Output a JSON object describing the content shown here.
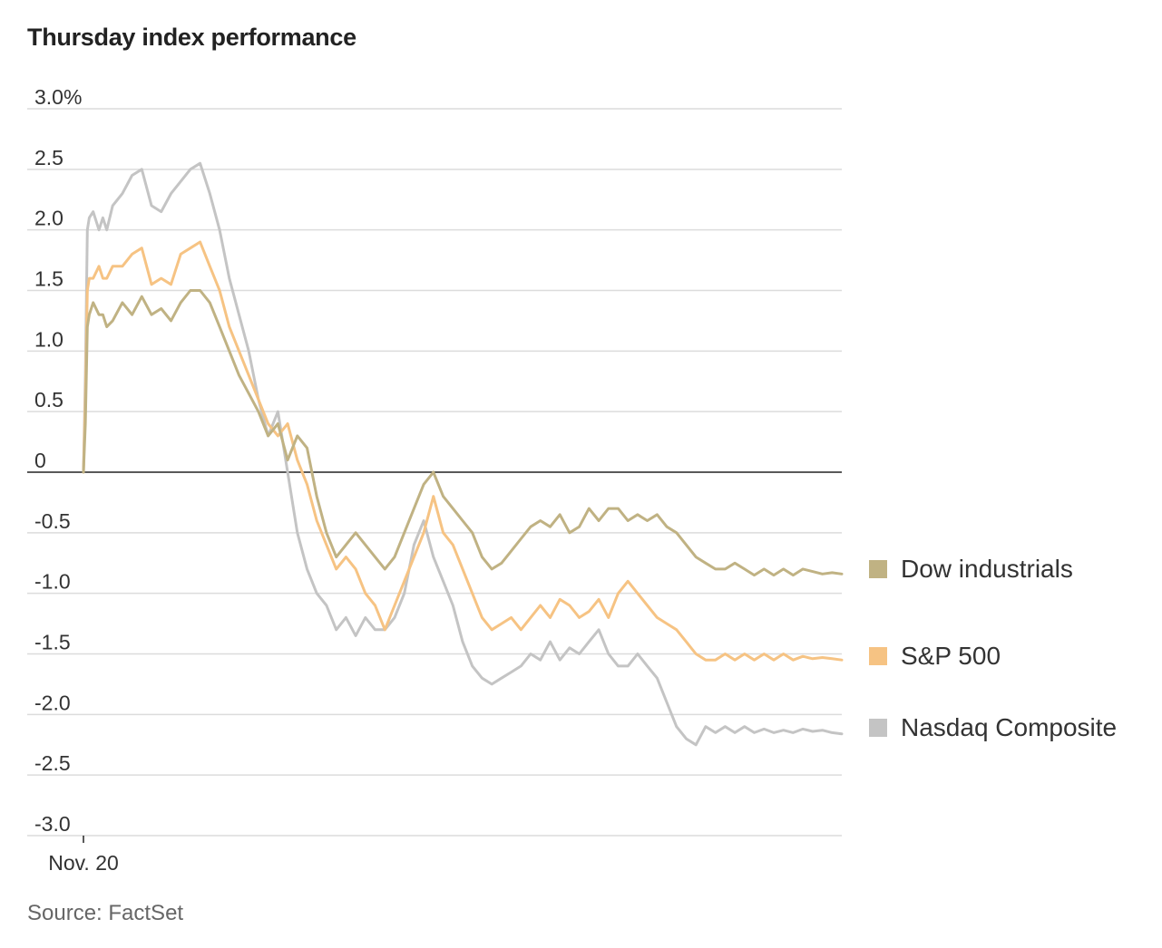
{
  "chart_data": {
    "type": "line",
    "title": "Thursday index performance",
    "source": "Source: FactSet",
    "xlabel": "",
    "ylabel": "",
    "x_tick_labels": [
      "Nov. 20"
    ],
    "ylim": [
      -3.0,
      3.0
    ],
    "y_ticks": [
      {
        "value": 3.0,
        "label": "3.0%"
      },
      {
        "value": 2.5,
        "label": "2.5"
      },
      {
        "value": 2.0,
        "label": "2.0"
      },
      {
        "value": 1.5,
        "label": "1.5"
      },
      {
        "value": 1.0,
        "label": "1.0"
      },
      {
        "value": 0.5,
        "label": "0.5"
      },
      {
        "value": 0,
        "label": "0"
      },
      {
        "value": -0.5,
        "label": "-0.5"
      },
      {
        "value": -1.0,
        "label": "-1.0"
      },
      {
        "value": -1.5,
        "label": "-1.5"
      },
      {
        "value": -2.0,
        "label": "-2.0"
      },
      {
        "value": -2.5,
        "label": "-2.5"
      },
      {
        "value": -3.0,
        "label": "-3.0"
      }
    ],
    "x": [
      0,
      1,
      2,
      3,
      5,
      8,
      10,
      12,
      15,
      20,
      25,
      30,
      35,
      40,
      45,
      50,
      55,
      60,
      65,
      70,
      75,
      80,
      85,
      90,
      95,
      100,
      105,
      110,
      115,
      120,
      125,
      130,
      135,
      140,
      145,
      150,
      155,
      160,
      165,
      170,
      175,
      180,
      185,
      190,
      195,
      200,
      205,
      210,
      215,
      220,
      225,
      230,
      235,
      240,
      245,
      250,
      255,
      260,
      265,
      270,
      275,
      280,
      285,
      290,
      295,
      300,
      305,
      310,
      315,
      320,
      325,
      330,
      335,
      340,
      345,
      350,
      355,
      360,
      365,
      370,
      375,
      380,
      385,
      390
    ],
    "series": [
      {
        "name": "Dow industrials",
        "color": "#c0b283",
        "values": [
          0,
          0.4,
          1.2,
          1.3,
          1.4,
          1.3,
          1.3,
          1.2,
          1.25,
          1.4,
          1.3,
          1.45,
          1.3,
          1.35,
          1.25,
          1.4,
          1.5,
          1.5,
          1.4,
          1.2,
          1.0,
          0.8,
          0.65,
          0.5,
          0.3,
          0.4,
          0.1,
          0.3,
          0.2,
          -0.2,
          -0.5,
          -0.7,
          -0.6,
          -0.5,
          -0.6,
          -0.7,
          -0.8,
          -0.7,
          -0.5,
          -0.3,
          -0.1,
          0.0,
          -0.2,
          -0.3,
          -0.4,
          -0.5,
          -0.7,
          -0.8,
          -0.75,
          -0.65,
          -0.55,
          -0.45,
          -0.4,
          -0.45,
          -0.35,
          -0.5,
          -0.45,
          -0.3,
          -0.4,
          -0.3,
          -0.3,
          -0.4,
          -0.35,
          -0.4,
          -0.35,
          -0.45,
          -0.5,
          -0.6,
          -0.7,
          -0.75,
          -0.8,
          -0.8,
          -0.75,
          -0.8,
          -0.85,
          -0.8,
          -0.85,
          -0.8,
          -0.85,
          -0.8,
          -0.82,
          -0.84,
          -0.83,
          -0.84
        ]
      },
      {
        "name": "S&P 500",
        "color": "#f6c383",
        "values": [
          0,
          0.6,
          1.5,
          1.6,
          1.6,
          1.7,
          1.6,
          1.6,
          1.7,
          1.7,
          1.8,
          1.85,
          1.55,
          1.6,
          1.55,
          1.8,
          1.85,
          1.9,
          1.7,
          1.5,
          1.2,
          1.0,
          0.8,
          0.6,
          0.4,
          0.3,
          0.4,
          0.1,
          -0.1,
          -0.4,
          -0.6,
          -0.8,
          -0.7,
          -0.8,
          -1.0,
          -1.1,
          -1.3,
          -1.1,
          -0.9,
          -0.7,
          -0.5,
          -0.2,
          -0.5,
          -0.6,
          -0.8,
          -1.0,
          -1.2,
          -1.3,
          -1.25,
          -1.2,
          -1.3,
          -1.2,
          -1.1,
          -1.2,
          -1.05,
          -1.1,
          -1.2,
          -1.15,
          -1.05,
          -1.2,
          -1.0,
          -0.9,
          -1.0,
          -1.1,
          -1.2,
          -1.25,
          -1.3,
          -1.4,
          -1.5,
          -1.55,
          -1.55,
          -1.5,
          -1.55,
          -1.5,
          -1.55,
          -1.5,
          -1.55,
          -1.5,
          -1.55,
          -1.52,
          -1.54,
          -1.53,
          -1.54,
          -1.55
        ]
      },
      {
        "name": "Nasdaq Composite",
        "color": "#c4c4c4",
        "values": [
          0,
          0.8,
          2.0,
          2.1,
          2.15,
          2.0,
          2.1,
          2.0,
          2.2,
          2.3,
          2.45,
          2.5,
          2.2,
          2.15,
          2.3,
          2.4,
          2.5,
          2.55,
          2.3,
          2.0,
          1.6,
          1.3,
          1.0,
          0.6,
          0.3,
          0.5,
          0.0,
          -0.5,
          -0.8,
          -1.0,
          -1.1,
          -1.3,
          -1.2,
          -1.35,
          -1.2,
          -1.3,
          -1.3,
          -1.2,
          -1.0,
          -0.6,
          -0.4,
          -0.7,
          -0.9,
          -1.1,
          -1.4,
          -1.6,
          -1.7,
          -1.75,
          -1.7,
          -1.65,
          -1.6,
          -1.5,
          -1.55,
          -1.4,
          -1.55,
          -1.45,
          -1.5,
          -1.4,
          -1.3,
          -1.5,
          -1.6,
          -1.6,
          -1.5,
          -1.6,
          -1.7,
          -1.9,
          -2.1,
          -2.2,
          -2.25,
          -2.1,
          -2.15,
          -2.1,
          -2.15,
          -2.1,
          -2.15,
          -2.12,
          -2.15,
          -2.13,
          -2.15,
          -2.12,
          -2.14,
          -2.13,
          -2.15,
          -2.16
        ]
      }
    ],
    "legend": {
      "placement": "right",
      "items": [
        {
          "label": "Dow industrials",
          "color": "#c0b283"
        },
        {
          "label": "S&P 500",
          "color": "#f6c383"
        },
        {
          "label": "Nasdaq Composite",
          "color": "#c4c4c4"
        }
      ]
    }
  }
}
